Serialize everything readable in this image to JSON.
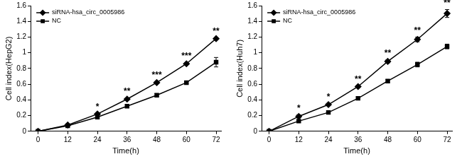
{
  "chart_data": [
    {
      "type": "line",
      "x_label": "Time(h)",
      "y_label": "Cell index(HepG2)",
      "x": [
        0,
        12,
        24,
        36,
        48,
        60,
        72
      ],
      "xlim": [
        -3,
        74
      ],
      "xticks": [
        0,
        12,
        24,
        36,
        48,
        60,
        72
      ],
      "ylim": [
        0,
        1.6
      ],
      "yticks": [
        0,
        0.2,
        0.4,
        0.6,
        0.8,
        1,
        1.2,
        1.4,
        1.6
      ],
      "grid": false,
      "legend": "top left",
      "series": [
        {
          "name": "siRNA-hsa_circ_0005986",
          "color": "#000000",
          "marker": "diamond",
          "line_style": "solid",
          "values": [
            0,
            0.08,
            0.22,
            0.41,
            0.62,
            0.86,
            1.18
          ],
          "errors": [
            0,
            0.005,
            0.01,
            0.01,
            0.01,
            0.01,
            0.01
          ]
        },
        {
          "name": "NC",
          "color": "#000000",
          "marker": "square",
          "line_style": "solid",
          "values": [
            0,
            0.07,
            0.18,
            0.32,
            0.46,
            0.62,
            0.88
          ],
          "errors": [
            0,
            0.005,
            0.01,
            0.02,
            0.02,
            0.015,
            0.06
          ]
        }
      ],
      "annotations": [
        {
          "x": 24,
          "text": "*"
        },
        {
          "x": 36,
          "text": "**"
        },
        {
          "x": 48,
          "text": "***"
        },
        {
          "x": 60,
          "text": "***"
        },
        {
          "x": 72,
          "text": "**"
        }
      ]
    },
    {
      "type": "line",
      "x_label": "Time(h)",
      "y_label": "Cell index(Huh7)",
      "x": [
        0,
        12,
        24,
        36,
        48,
        60,
        72
      ],
      "xlim": [
        -3,
        74
      ],
      "xticks": [
        0,
        12,
        24,
        36,
        48,
        60,
        72
      ],
      "ylim": [
        0,
        1.6
      ],
      "yticks": [
        0,
        0.2,
        0.4,
        0.6,
        0.8,
        1,
        1.2,
        1.4,
        1.6
      ],
      "grid": false,
      "legend": "top left",
      "series": [
        {
          "name": "siRNA-hsa_circ_0005986",
          "color": "#000000",
          "marker": "diamond",
          "line_style": "solid",
          "values": [
            0,
            0.19,
            0.34,
            0.57,
            0.89,
            1.17,
            1.5
          ],
          "errors": [
            0,
            0.02,
            0.01,
            0.01,
            0.02,
            0.03,
            0.05
          ]
        },
        {
          "name": "NC",
          "color": "#000000",
          "marker": "square",
          "line_style": "solid",
          "values": [
            0,
            0.13,
            0.24,
            0.42,
            0.64,
            0.85,
            1.08
          ],
          "errors": [
            0,
            0.01,
            0.02,
            0.02,
            0.02,
            0.03,
            0.03
          ]
        }
      ],
      "annotations": [
        {
          "x": 12,
          "text": "*"
        },
        {
          "x": 24,
          "text": "*"
        },
        {
          "x": 36,
          "text": "**"
        },
        {
          "x": 48,
          "text": "**"
        },
        {
          "x": 60,
          "text": "**"
        },
        {
          "x": 72,
          "text": "**"
        }
      ]
    }
  ]
}
